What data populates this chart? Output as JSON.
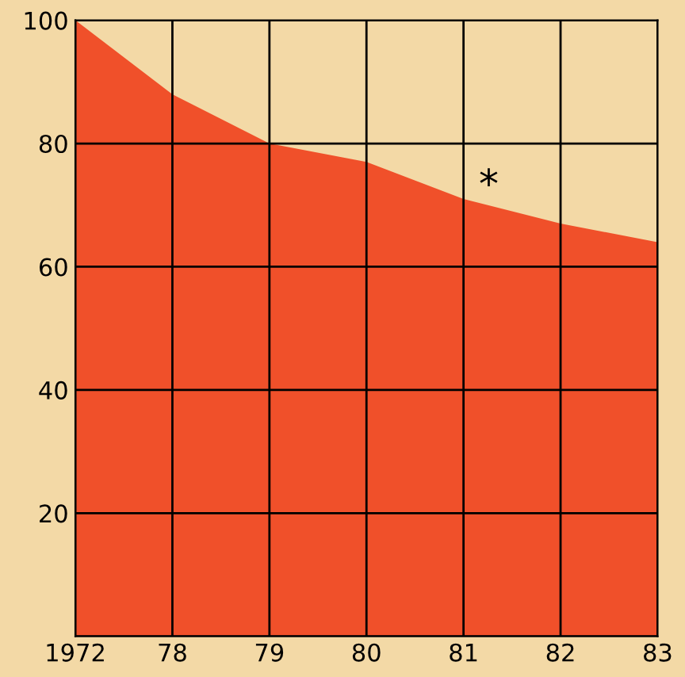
{
  "chart_data": {
    "type": "area",
    "categories": [
      "1972",
      "78",
      "79",
      "80",
      "81",
      "82",
      "83"
    ],
    "series": [
      {
        "color": "#f0502a",
        "values": [
          100,
          88,
          80,
          77,
          71,
          67,
          64
        ]
      }
    ],
    "ylim": [
      0,
      100
    ],
    "yticks": [
      {
        "value": 0,
        "label": null
      },
      20,
      40,
      60,
      80,
      100
    ],
    "grid": true,
    "annotations": [
      "*"
    ]
  }
}
